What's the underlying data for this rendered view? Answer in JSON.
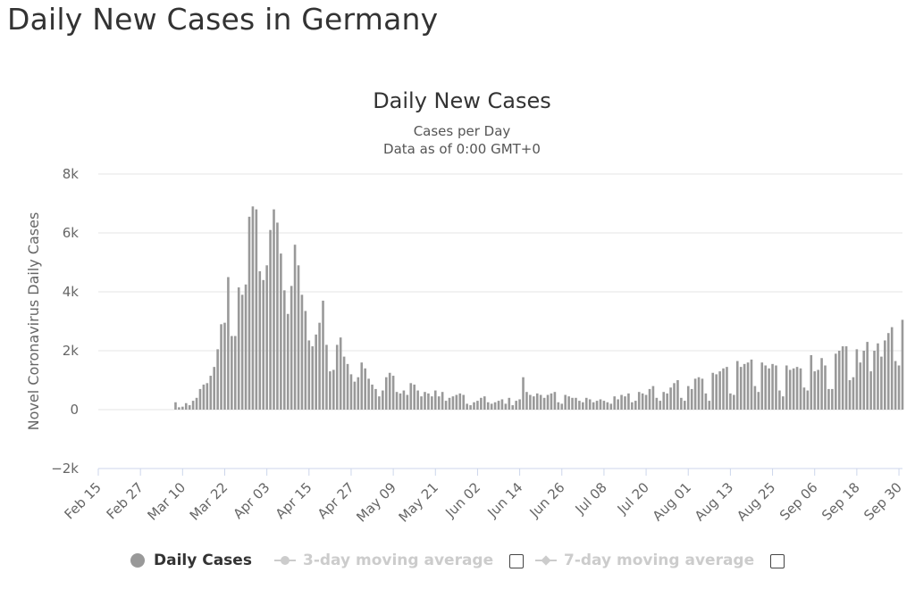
{
  "page": {
    "title": "Daily New Cases in Germany"
  },
  "chart_data": {
    "type": "bar",
    "title": "Daily New Cases",
    "subtitle": "Cases per Day",
    "subtitle2": "Data as of 0:00 GMT+0",
    "ylabel": "Novel Coronavirus Daily Cases",
    "ylim": [
      -2000,
      8000
    ],
    "yticks": [
      -2000,
      0,
      2000,
      4000,
      6000,
      8000
    ],
    "ytick_labels": [
      "−2k",
      "0",
      "2k",
      "4k",
      "6k",
      "8k"
    ],
    "xtick_labels": [
      "Feb 15",
      "Feb 27",
      "Mar 10",
      "Mar 22",
      "Apr 03",
      "Apr 15",
      "Apr 27",
      "May 09",
      "May 21",
      "Jun 02",
      "Jun 14",
      "Jun 26",
      "Jul 08",
      "Jul 20",
      "Aug 01",
      "Aug 13",
      "Aug 25",
      "Sep 06",
      "Sep 18",
      "Sep 30"
    ],
    "start_label": "Feb 15",
    "grid": true,
    "bar_color": "#999999",
    "series": [
      {
        "name": "Daily Cases",
        "values": [
          0,
          0,
          0,
          0,
          0,
          0,
          0,
          0,
          0,
          0,
          0,
          0,
          0,
          0,
          0,
          0,
          0,
          0,
          0,
          0,
          0,
          0,
          250,
          80,
          100,
          220,
          150,
          300,
          400,
          700,
          850,
          900,
          1150,
          1450,
          2050,
          2900,
          2950,
          4500,
          2500,
          2500,
          4150,
          3900,
          4250,
          6550,
          6900,
          6800,
          4700,
          4400,
          4900,
          6100,
          6800,
          6350,
          5300,
          4050,
          3250,
          4200,
          5600,
          4900,
          3900,
          3350,
          2350,
          2150,
          2550,
          2950,
          3700,
          2200,
          1300,
          1350,
          2200,
          2450,
          1800,
          1550,
          1200,
          950,
          1100,
          1600,
          1400,
          1050,
          850,
          700,
          450,
          650,
          1100,
          1250,
          1150,
          600,
          550,
          650,
          500,
          900,
          850,
          650,
          450,
          600,
          550,
          450,
          650,
          450,
          600,
          300,
          400,
          450,
          500,
          550,
          500,
          200,
          150,
          250,
          300,
          400,
          450,
          250,
          200,
          250,
          300,
          350,
          200,
          400,
          150,
          300,
          350,
          1100,
          600,
          500,
          450,
          550,
          500,
          400,
          500,
          550,
          600,
          250,
          200,
          500,
          450,
          400,
          400,
          300,
          250,
          400,
          350,
          250,
          300,
          350,
          300,
          250,
          200,
          450,
          350,
          500,
          450,
          550,
          250,
          300,
          600,
          550,
          500,
          700,
          800,
          400,
          300,
          600,
          550,
          750,
          900,
          1000,
          400,
          300,
          800,
          700,
          1050,
          1100,
          1050,
          550,
          300,
          1250,
          1200,
          1300,
          1400,
          1450,
          550,
          500,
          1650,
          1450,
          1550,
          1600,
          1700,
          800,
          600,
          1600,
          1500,
          1400,
          1550,
          1500,
          650,
          450,
          1500,
          1350,
          1400,
          1450,
          1400,
          750,
          650,
          1850,
          1300,
          1350,
          1750,
          1500,
          700,
          700,
          1900,
          2000,
          2150,
          2150,
          1000,
          1100,
          2050,
          1600,
          2000,
          2300,
          1300,
          2000,
          2250,
          1800,
          2350,
          2600,
          2800,
          1650,
          1500,
          3050
        ]
      }
    ]
  },
  "legend": {
    "items": [
      {
        "label": "Daily Cases"
      },
      {
        "label": "3-day moving average"
      },
      {
        "label": "7-day moving average"
      }
    ]
  }
}
